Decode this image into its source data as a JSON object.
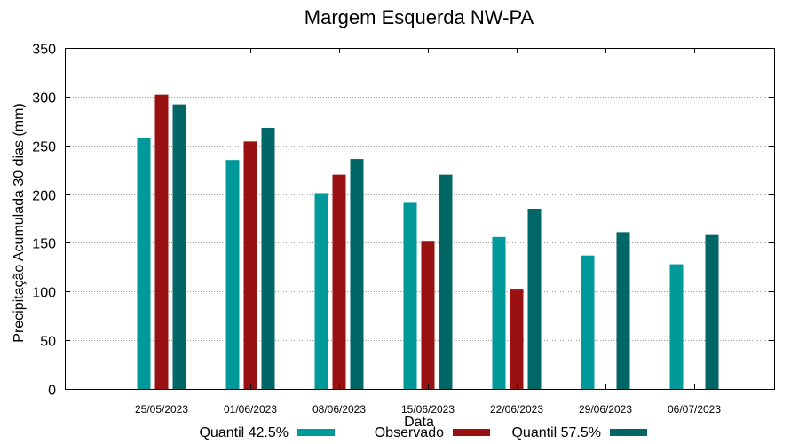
{
  "chart_data": {
    "type": "bar",
    "title": "Margem Esquerda NW-PA",
    "xlabel": "Data",
    "ylabel": "Precipitação Acumulada 30 dias (mm)",
    "ylim": [
      0,
      350
    ],
    "yticks": [
      0,
      50,
      100,
      150,
      200,
      250,
      300,
      350
    ],
    "grid": true,
    "categories": [
      "25/05/2023",
      "01/06/2023",
      "08/06/2023",
      "15/06/2023",
      "22/06/2023",
      "29/06/2023",
      "06/07/2023"
    ],
    "series": [
      {
        "name": "Quantil 42.5%",
        "color": "#009999",
        "values": [
          258,
          235,
          201,
          191,
          156,
          137,
          128
        ]
      },
      {
        "name": "Observado",
        "color": "#991111",
        "values": [
          302,
          254,
          220,
          152,
          102,
          null,
          null
        ]
      },
      {
        "name": "Quantil 57.5%",
        "color": "#006666",
        "values": [
          292,
          268,
          236,
          220,
          185,
          161,
          158
        ]
      }
    ],
    "legend_position": "bottom"
  }
}
